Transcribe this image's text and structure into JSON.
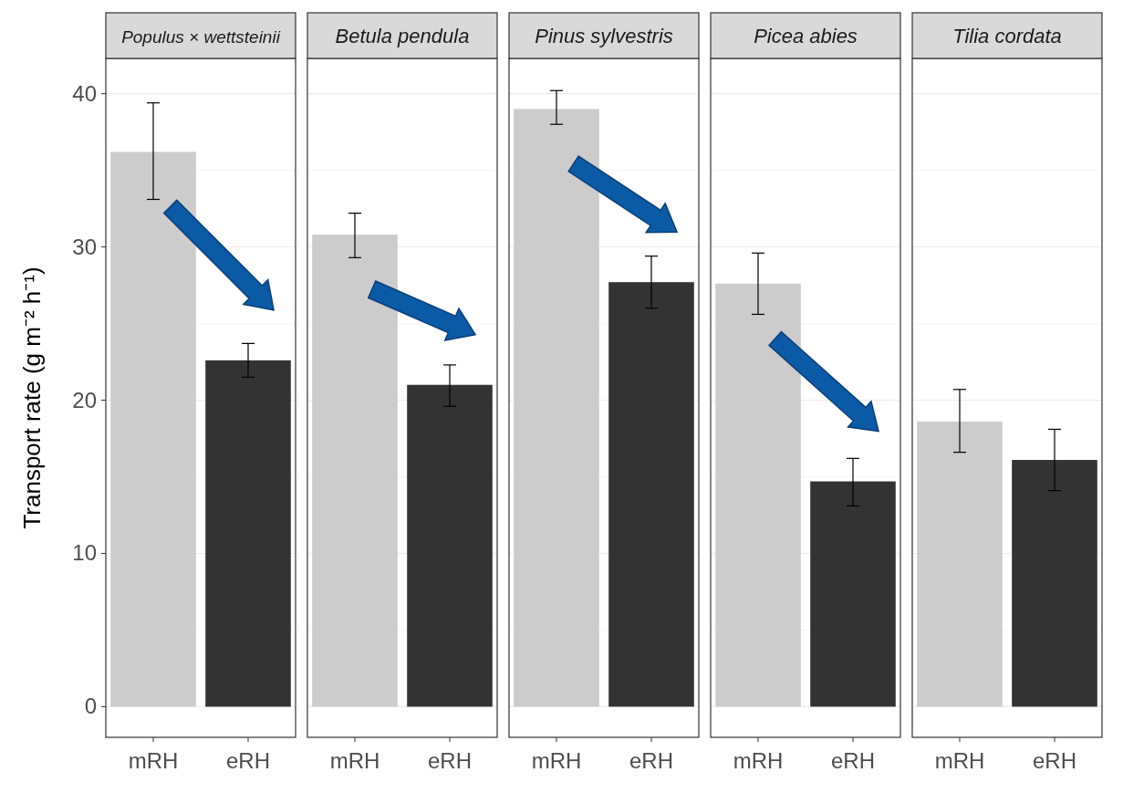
{
  "chart_data": [
    {
      "type": "bar",
      "title": "Populus × wettsteinii",
      "ylabel": "Transport rate (g m⁻² h⁻¹)",
      "categories": [
        "mRH",
        "eRH"
      ],
      "values": [
        36.2,
        22.6
      ],
      "colors": [
        "#cccccc",
        "#333333"
      ],
      "errors": [
        [
          33.1,
          39.4
        ],
        [
          21.5,
          23.7
        ]
      ],
      "ylim": [
        -2,
        42.3
      ],
      "yticks": [
        0,
        10,
        20,
        30,
        40
      ],
      "grid": "y"
    },
    {
      "type": "bar",
      "title": "Betula pendula",
      "categories": [
        "mRH",
        "eRH"
      ],
      "values": [
        30.8,
        21.0
      ],
      "colors": [
        "#cccccc",
        "#333333"
      ],
      "errors": [
        [
          29.3,
          32.2
        ],
        [
          19.6,
          22.3
        ]
      ],
      "ylim": [
        -2,
        42.3
      ],
      "yticks": [
        0,
        10,
        20,
        30,
        40
      ],
      "grid": "y",
      "tick_labels": "x"
    },
    {
      "type": "bar",
      "title": "Pinus sylvestris",
      "categories": [
        "mRH",
        "eRH"
      ],
      "values": [
        39.0,
        27.7
      ],
      "colors": [
        "#cccccc",
        "#333333"
      ],
      "errors": [
        [
          38.0,
          40.2
        ],
        [
          26.0,
          29.4
        ]
      ],
      "ylim": [
        -2,
        42.3
      ],
      "yticks": [
        0,
        10,
        20,
        30,
        40
      ],
      "grid": "y",
      "tick_labels": "x"
    },
    {
      "type": "bar",
      "title": "Picea abies",
      "categories": [
        "mRH",
        "eRH"
      ],
      "values": [
        27.6,
        14.7
      ],
      "colors": [
        "#cccccc",
        "#333333"
      ],
      "errors": [
        [
          25.6,
          29.6
        ],
        [
          13.1,
          16.2
        ]
      ],
      "ylim": [
        -2,
        42.3
      ],
      "yticks": [
        0,
        10,
        20,
        30,
        40
      ],
      "grid": "y",
      "tick_labels": "x"
    },
    {
      "type": "bar",
      "title": "Tilia cordata",
      "categories": [
        "mRH",
        "eRH"
      ],
      "values": [
        18.6,
        16.1
      ],
      "colors": [
        "#cccccc",
        "#333333"
      ],
      "errors": [
        [
          16.6,
          20.7
        ],
        [
          14.1,
          18.1
        ]
      ],
      "ylim": [
        -2,
        42.3
      ],
      "yticks": [
        0,
        10,
        20,
        30,
        40
      ],
      "grid": "y",
      "tick_labels": "x"
    }
  ]
}
